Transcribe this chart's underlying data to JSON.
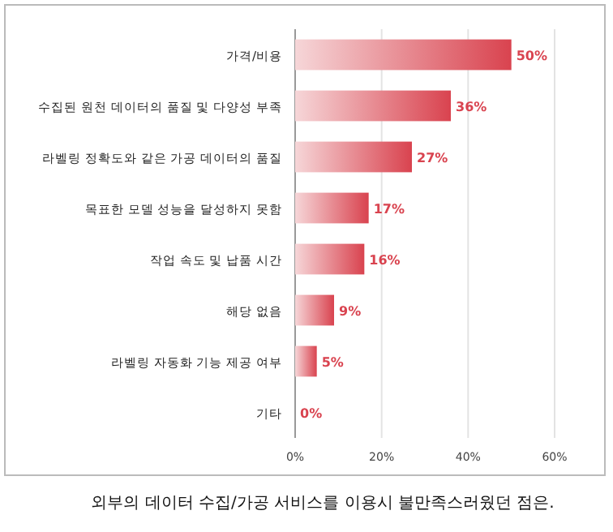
{
  "chart_data": {
    "type": "bar",
    "orientation": "horizontal",
    "categories": [
      "가격/비용",
      "수집된 원천 데이터의 품질 및 다양성 부족",
      "라벨링 정확도와 같은 가공 데이터의 품질",
      "목표한 모델 성능을 달성하지 못함",
      "작업 속도 및 납품 시간",
      "해당 없음",
      "라벨링 자동화 기능 제공 여부",
      "기타"
    ],
    "values": [
      50,
      36,
      27,
      17,
      16,
      9,
      5,
      0
    ],
    "value_labels": [
      "50%",
      "36%",
      "27%",
      "17%",
      "16%",
      "9%",
      "5%",
      "0%"
    ],
    "color": "#d9434f",
    "xlim": [
      0,
      60
    ],
    "xticks": [
      {
        "value": 0,
        "label": "0%"
      },
      {
        "value": 20,
        "label": "20%"
      },
      {
        "value": 40,
        "label": "40%"
      },
      {
        "value": 60,
        "label": "60%"
      }
    ],
    "grid": "x",
    "annotations": [
      "외부의 데이터 수집/가공 서비스를 이용시 불만족스러웠던 점은."
    ]
  }
}
